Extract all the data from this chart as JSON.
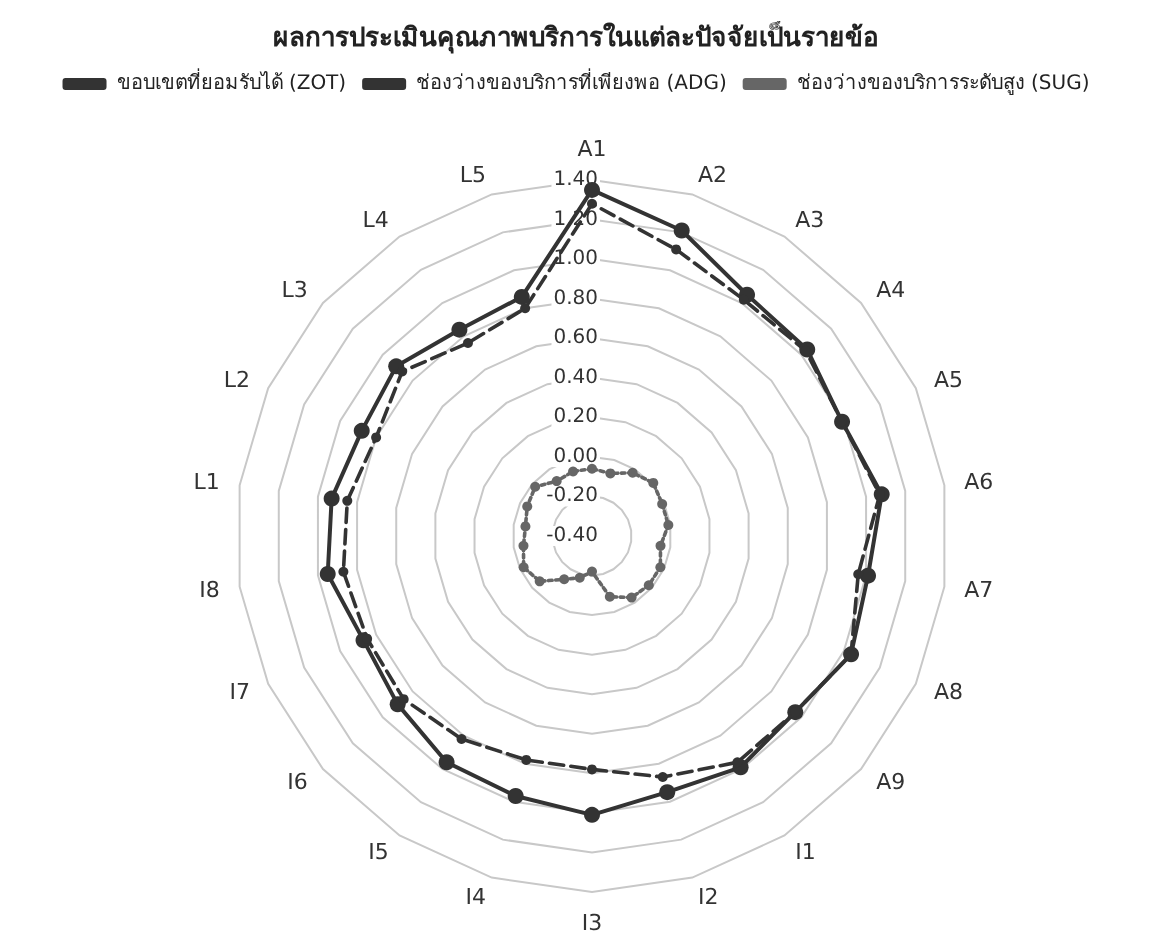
{
  "chart_data": {
    "type": "radar",
    "title": "ผลการประเมินคุณภาพบริการในแต่ละปัจจัยเป็นรายข้อ",
    "categories": [
      "A1",
      "A2",
      "A3",
      "A4",
      "A5",
      "A6",
      "A7",
      "A8",
      "A9",
      "I1",
      "I2",
      "I3",
      "I4",
      "I5",
      "I6",
      "I7",
      "I8",
      "L1",
      "L2",
      "L3",
      "L4",
      "L5"
    ],
    "series": [
      {
        "name": "ขอบเขตที่ยอมรับได้ (ZOT)",
        "color": "#333333",
        "line_style": "solid",
        "values": [
          1.35,
          1.21,
          1.05,
          1.04,
          0.99,
          1.08,
          1.01,
          1.04,
          0.96,
          0.99,
          0.95,
          1.01,
          0.97,
          0.96,
          0.9,
          0.87,
          0.95,
          0.93,
          0.88,
          0.91,
          0.84,
          0.86
        ]
      },
      {
        "name": "ช่องว่างของบริการที่เพียงพอ (ADG)",
        "color": "#333333",
        "line_style": "dashed",
        "values": [
          1.28,
          1.11,
          1.02,
          1.03,
          0.99,
          1.07,
          0.96,
          1.04,
          0.96,
          0.96,
          0.87,
          0.78,
          0.78,
          0.82,
          0.86,
          0.85,
          0.87,
          0.85,
          0.8,
          0.87,
          0.76,
          0.8
        ]
      },
      {
        "name": "ช่องว่างของบริการระดับสูง (SUG)",
        "color": "#666666",
        "line_style": "dotted",
        "values": [
          -0.06,
          -0.07,
          -0.02,
          0.01,
          -0.01,
          -0.01,
          -0.05,
          -0.02,
          -0.02,
          -0.03,
          -0.08,
          -0.22,
          -0.18,
          -0.14,
          -0.05,
          -0.02,
          -0.05,
          -0.06,
          -0.04,
          -0.02,
          -0.07,
          -0.06
        ]
      }
    ],
    "ylim": [
      -0.4,
      1.4
    ],
    "yticks": [
      {
        "value": -0.4,
        "label": "-0.40"
      },
      {
        "value": -0.2,
        "label": "-0.20"
      },
      {
        "value": 0,
        "label": "0.00"
      },
      {
        "value": 0.2,
        "label": "0.20"
      },
      {
        "value": 0.4,
        "label": "0.40"
      },
      {
        "value": 0.6,
        "label": "0.60"
      },
      {
        "value": 0.8,
        "label": "0.80"
      },
      {
        "value": 1.0,
        "label": "1.00"
      },
      {
        "value": 1.2,
        "label": "1.20"
      },
      {
        "value": 1.4,
        "label": "1.40"
      }
    ],
    "grid": true,
    "legend": "top",
    "marker": "circle"
  }
}
